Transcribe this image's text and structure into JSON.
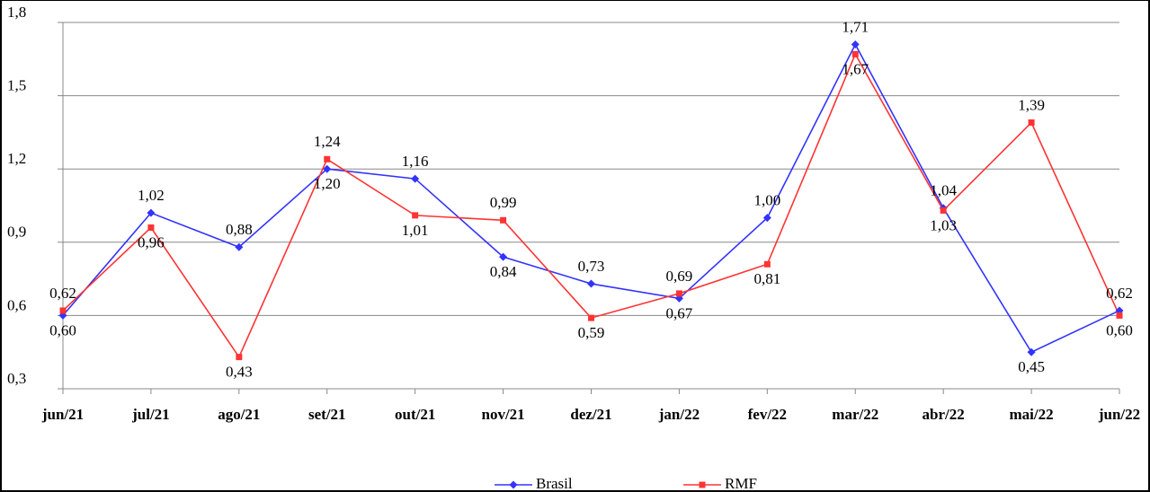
{
  "chart_data": {
    "type": "line",
    "categories": [
      "jun/21",
      "jul/21",
      "ago/21",
      "set/21",
      "out/21",
      "nov/21",
      "dez/21",
      "jan/22",
      "fev/22",
      "mar/22",
      "abr/22",
      "mai/22",
      "jun/22"
    ],
    "series": [
      {
        "name": "Brasil",
        "color": "#3333ff",
        "marker": "diamond",
        "values": [
          0.6,
          1.02,
          0.88,
          1.2,
          1.16,
          0.84,
          0.73,
          0.67,
          1.0,
          1.71,
          1.04,
          0.45,
          0.62
        ],
        "value_labels": [
          "0,60",
          "1,02",
          "0,88",
          "1,20",
          "1,16",
          "0,84",
          "0,73",
          "0,67",
          "1,00",
          "1,71",
          "1,04",
          "0,45",
          "0,62"
        ]
      },
      {
        "name": "RMF",
        "color": "#ff3333",
        "marker": "square",
        "values": [
          0.62,
          0.96,
          0.43,
          1.24,
          1.01,
          0.99,
          0.59,
          0.69,
          0.81,
          1.67,
          1.03,
          1.39,
          0.6
        ],
        "value_labels": [
          "0,62",
          "0,96",
          "0,43",
          "1,24",
          "1,01",
          "0,99",
          "0,59",
          "0,69",
          "0,81",
          "1,67",
          "1,03",
          "1,39",
          "0,60"
        ]
      }
    ],
    "ylim": [
      0.3,
      1.8
    ],
    "yticks": [
      {
        "value": 0.3,
        "label": "0,3"
      },
      {
        "value": 0.6,
        "label": "0,6"
      },
      {
        "value": 0.9,
        "label": "0,9"
      },
      {
        "value": 1.2,
        "label": "1,2"
      },
      {
        "value": 1.5,
        "label": "1,5"
      },
      {
        "value": 1.8,
        "label": "1,8"
      }
    ],
    "grid": true,
    "legend": "bottom"
  }
}
